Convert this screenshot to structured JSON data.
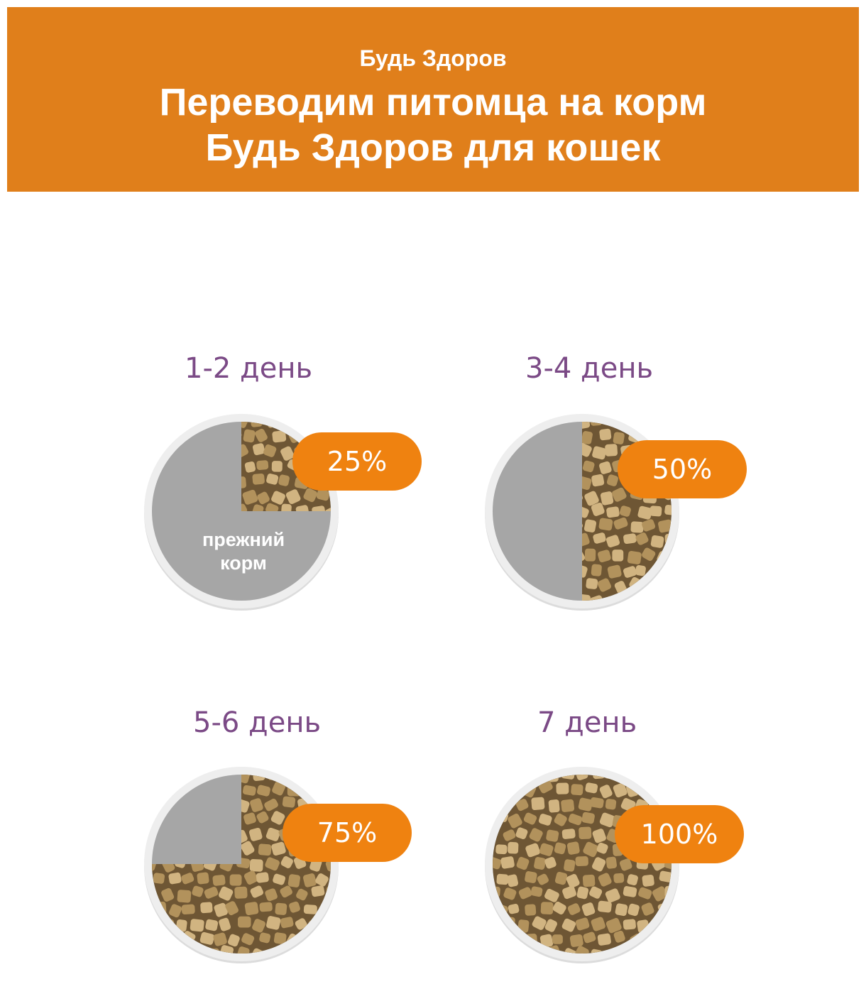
{
  "header": {
    "brand": "Будь Здоров",
    "title_line1": "Переводим питомца на корм",
    "title_line2": "Будь Здоров для кошек"
  },
  "colors": {
    "banner": "#e07f1b",
    "pill": "#ef8210",
    "label": "#7b4a86",
    "old_food": "#a6a6a6",
    "ring": "#eeeeee",
    "kibble_bg": "#6e5634",
    "kibble": "#b2925c",
    "kibble_light": "#d1b481"
  },
  "steps": [
    {
      "label": "1-2 день",
      "percent": "25%",
      "new_fraction": 0.25,
      "old_label": [
        "прежний",
        "корм"
      ]
    },
    {
      "label": "3-4 день",
      "percent": "50%",
      "new_fraction": 0.5
    },
    {
      "label": "5-6 день",
      "percent": "75%",
      "new_fraction": 0.75
    },
    {
      "label": "7 день",
      "percent": "100%",
      "new_fraction": 1.0
    }
  ]
}
